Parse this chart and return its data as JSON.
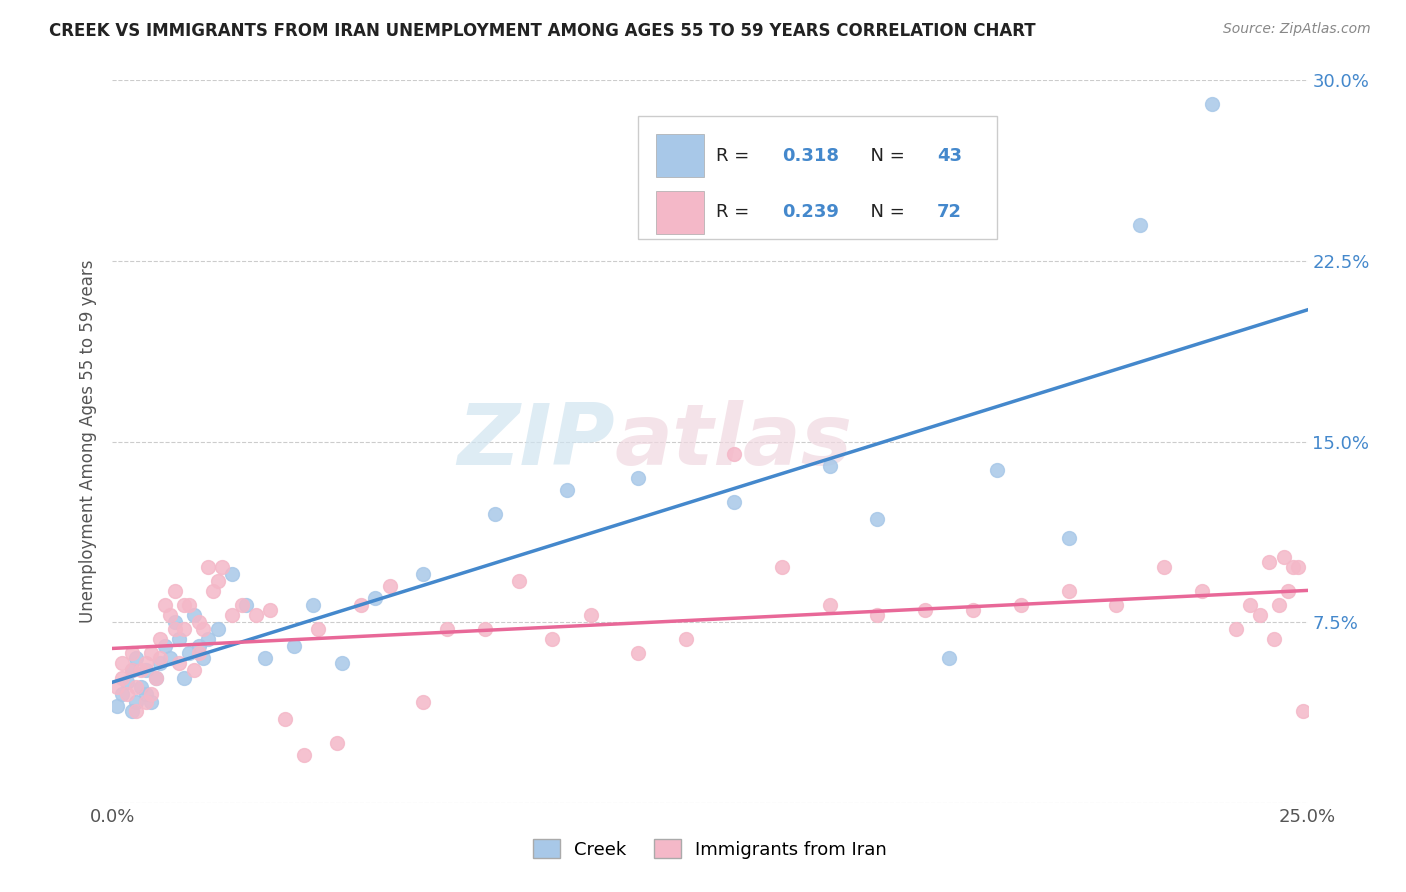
{
  "title": "CREEK VS IMMIGRANTS FROM IRAN UNEMPLOYMENT AMONG AGES 55 TO 59 YEARS CORRELATION CHART",
  "source": "Source: ZipAtlas.com",
  "ylabel": "Unemployment Among Ages 55 to 59 years",
  "xlim": [
    0.0,
    0.25
  ],
  "ylim": [
    0.0,
    0.3
  ],
  "creek_color": "#a8c8e8",
  "iran_color": "#f4b8c8",
  "creek_line_color": "#4488cc",
  "iran_line_color": "#e86898",
  "legend_creek_R": "0.318",
  "legend_creek_N": "43",
  "legend_iran_R": "0.239",
  "legend_iran_N": "72",
  "watermark_zip": "ZIP",
  "watermark_atlas": "atlas",
  "creek_scatter_x": [
    0.001,
    0.002,
    0.003,
    0.004,
    0.004,
    0.005,
    0.005,
    0.006,
    0.007,
    0.007,
    0.008,
    0.009,
    0.01,
    0.011,
    0.012,
    0.013,
    0.014,
    0.015,
    0.016,
    0.017,
    0.018,
    0.019,
    0.02,
    0.022,
    0.025,
    0.028,
    0.032,
    0.038,
    0.042,
    0.048,
    0.055,
    0.065,
    0.08,
    0.095,
    0.11,
    0.13,
    0.15,
    0.16,
    0.175,
    0.185,
    0.2,
    0.215,
    0.23
  ],
  "creek_scatter_y": [
    0.04,
    0.045,
    0.05,
    0.038,
    0.055,
    0.042,
    0.06,
    0.048,
    0.045,
    0.055,
    0.042,
    0.052,
    0.058,
    0.065,
    0.06,
    0.075,
    0.068,
    0.052,
    0.062,
    0.078,
    0.065,
    0.06,
    0.068,
    0.072,
    0.095,
    0.082,
    0.06,
    0.065,
    0.082,
    0.058,
    0.085,
    0.095,
    0.12,
    0.13,
    0.135,
    0.125,
    0.14,
    0.118,
    0.06,
    0.138,
    0.11,
    0.24,
    0.29
  ],
  "iran_scatter_x": [
    0.001,
    0.002,
    0.002,
    0.003,
    0.004,
    0.004,
    0.005,
    0.005,
    0.006,
    0.007,
    0.007,
    0.008,
    0.008,
    0.009,
    0.01,
    0.01,
    0.011,
    0.012,
    0.013,
    0.013,
    0.014,
    0.015,
    0.015,
    0.016,
    0.017,
    0.018,
    0.018,
    0.019,
    0.02,
    0.021,
    0.022,
    0.023,
    0.025,
    0.027,
    0.03,
    0.033,
    0.036,
    0.04,
    0.043,
    0.047,
    0.052,
    0.058,
    0.065,
    0.07,
    0.078,
    0.085,
    0.092,
    0.1,
    0.11,
    0.12,
    0.13,
    0.14,
    0.15,
    0.16,
    0.17,
    0.18,
    0.19,
    0.2,
    0.21,
    0.22,
    0.228,
    0.235,
    0.238,
    0.24,
    0.242,
    0.243,
    0.244,
    0.245,
    0.246,
    0.247,
    0.248,
    0.249
  ],
  "iran_scatter_y": [
    0.048,
    0.052,
    0.058,
    0.045,
    0.055,
    0.062,
    0.038,
    0.048,
    0.055,
    0.042,
    0.058,
    0.045,
    0.062,
    0.052,
    0.068,
    0.06,
    0.082,
    0.078,
    0.088,
    0.072,
    0.058,
    0.072,
    0.082,
    0.082,
    0.055,
    0.062,
    0.075,
    0.072,
    0.098,
    0.088,
    0.092,
    0.098,
    0.078,
    0.082,
    0.078,
    0.08,
    0.035,
    0.02,
    0.072,
    0.025,
    0.082,
    0.09,
    0.042,
    0.072,
    0.072,
    0.092,
    0.068,
    0.078,
    0.062,
    0.068,
    0.145,
    0.098,
    0.082,
    0.078,
    0.08,
    0.08,
    0.082,
    0.088,
    0.082,
    0.098,
    0.088,
    0.072,
    0.082,
    0.078,
    0.1,
    0.068,
    0.082,
    0.102,
    0.088,
    0.098,
    0.098,
    0.038
  ]
}
